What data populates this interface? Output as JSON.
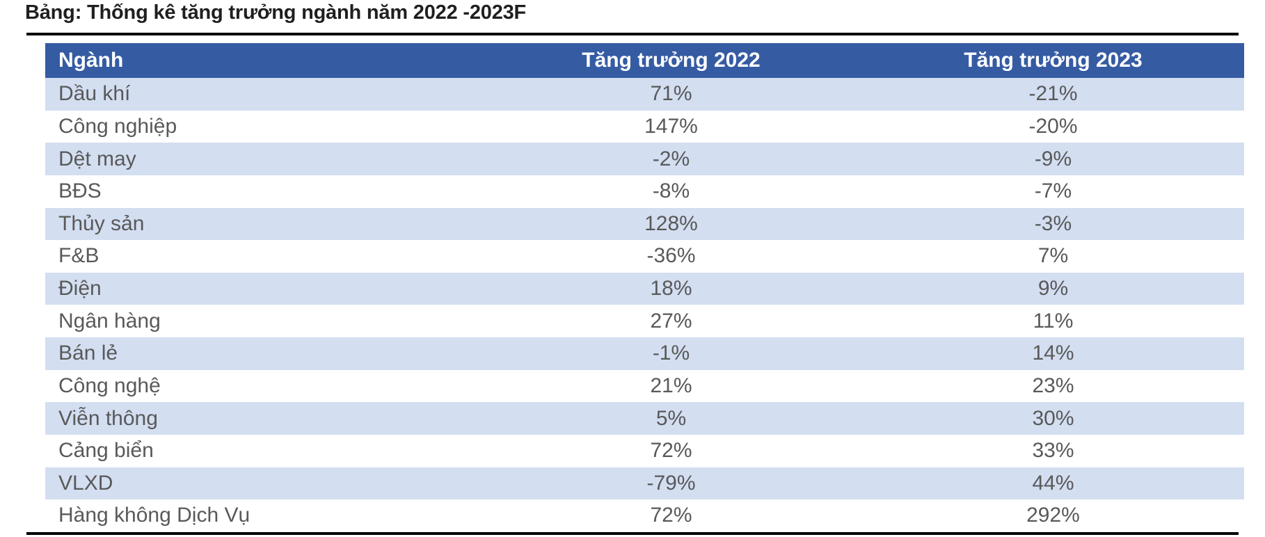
{
  "title": "Bảng: Thống kê tăng trưởng ngành năm 2022 -2023F",
  "colors": {
    "header_bg": "#355BA3",
    "row_alt_bg": "#D3DEF1",
    "row_bg": "#FFFFFF",
    "header_text": "#FFFFFF",
    "body_text": "#595959",
    "title_text": "#1F1F1F",
    "rule": "#000000"
  },
  "chart_data": {
    "type": "table",
    "title": "Bảng: Thống kê tăng trưởng ngành năm 2022 -2023F",
    "columns": [
      "Ngành",
      "Tăng trưởng 2022",
      "Tăng trưởng 2023"
    ],
    "rows": [
      [
        "Dầu khí",
        "71%",
        "-21%"
      ],
      [
        "Công nghiệp",
        "147%",
        "-20%"
      ],
      [
        "Dệt may",
        "-2%",
        "-9%"
      ],
      [
        "BĐS",
        "-8%",
        "-7%"
      ],
      [
        "Thủy sản",
        "128%",
        "-3%"
      ],
      [
        "F&B",
        "-36%",
        "7%"
      ],
      [
        "Điện",
        "18%",
        "9%"
      ],
      [
        "Ngân hàng",
        "27%",
        "11%"
      ],
      [
        "Bán lẻ",
        "-1%",
        "14%"
      ],
      [
        "Công nghệ",
        "21%",
        "23%"
      ],
      [
        "Viễn thông",
        "5%",
        "30%"
      ],
      [
        "Cảng biển",
        "72%",
        "33%"
      ],
      [
        "VLXD",
        "-79%",
        "44%"
      ],
      [
        "Hàng không Dịch Vụ",
        "72%",
        "292%"
      ]
    ],
    "categories": [
      "Dầu khí",
      "Công nghiệp",
      "Dệt may",
      "BĐS",
      "Thủy sản",
      "F&B",
      "Điện",
      "Ngân hàng",
      "Bán lẻ",
      "Công nghệ",
      "Viễn thông",
      "Cảng biển",
      "VLXD",
      "Hàng không Dịch Vụ"
    ],
    "series": [
      {
        "name": "Tăng trưởng 2022",
        "values_pct": [
          71,
          147,
          -2,
          -8,
          128,
          -36,
          18,
          27,
          -1,
          21,
          5,
          72,
          -79,
          72
        ]
      },
      {
        "name": "Tăng trưởng 2023",
        "values_pct": [
          -21,
          -20,
          -9,
          -7,
          -3,
          7,
          9,
          11,
          14,
          23,
          30,
          33,
          44,
          292
        ]
      }
    ],
    "layout": {
      "header_band": true,
      "banded_rows": true,
      "legend_position": "none",
      "grid": false
    }
  }
}
